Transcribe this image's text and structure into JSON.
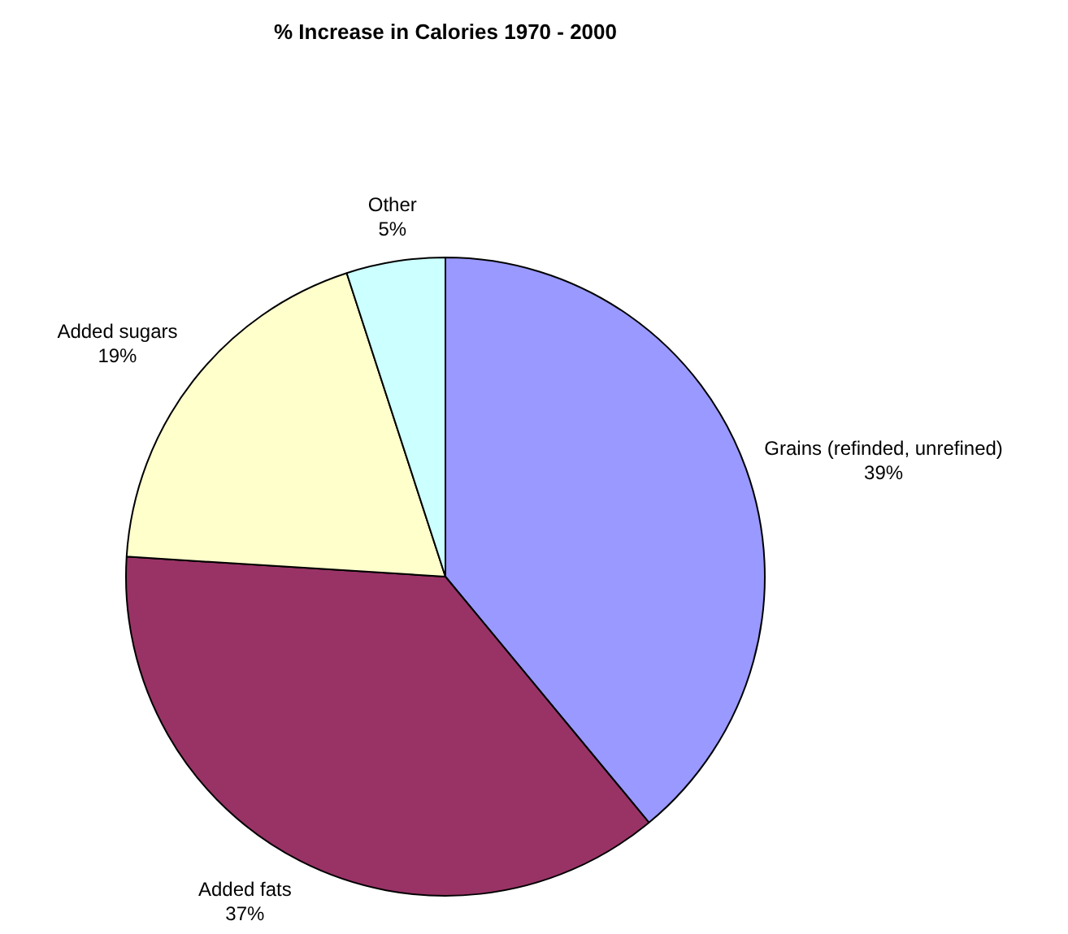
{
  "chart_data": {
    "type": "pie",
    "title": "% Increase in Calories 1970 - 2000",
    "categories": [
      "Grains (refinded, unrefined)",
      "Added fats",
      "Added sugars",
      "Other"
    ],
    "values": [
      39,
      37,
      19,
      5
    ],
    "value_labels": [
      "39%",
      "37%",
      "19%",
      "5%"
    ],
    "colors": [
      "#9999ff",
      "#993366",
      "#ffffcc",
      "#ccffff"
    ],
    "legend": false
  }
}
